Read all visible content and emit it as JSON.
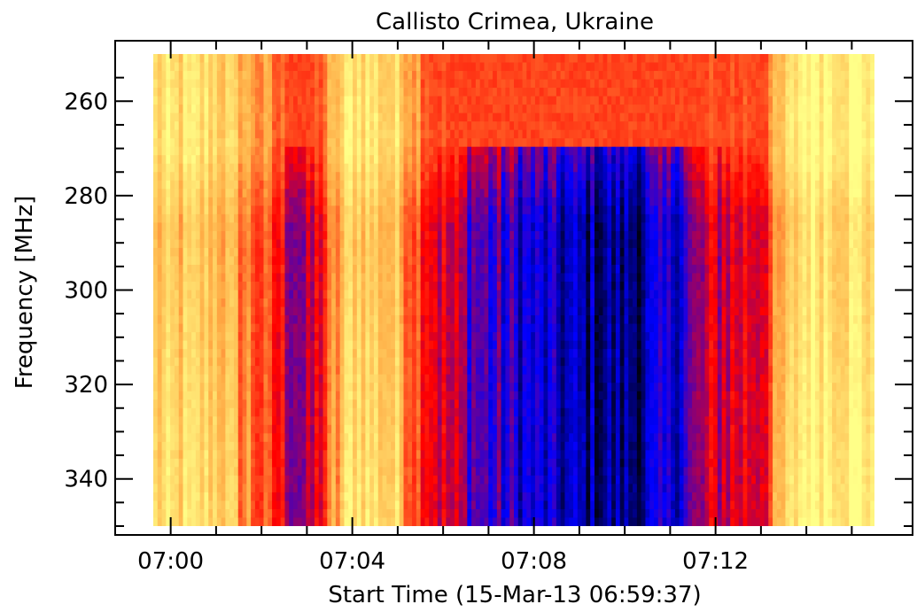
{
  "chart_data": {
    "type": "heatmap",
    "title": "Callisto Crimea, Ukraine",
    "xlabel": "Start Time (15-Mar-13 06:59:37)",
    "ylabel": "Frequency [MHz]",
    "x_unit": "time (HH:MM)",
    "x_range": [
      "06:59:37",
      "07:15:30"
    ],
    "x_ticks": [
      "07:00",
      "07:04",
      "07:08",
      "07:12"
    ],
    "x_tick_values": [
      "07:00",
      "07:04",
      "07:08",
      "07:12"
    ],
    "y_range": [
      250,
      350
    ],
    "y_reversed": true,
    "y_ticks": [
      "260",
      "280",
      "300",
      "320",
      "340"
    ],
    "y_tick_values": [
      260,
      280,
      300,
      320,
      340
    ],
    "colormap": [
      "#000000",
      "#0000ff",
      "#ff0000",
      "#ffaa44",
      "#ffff88"
    ],
    "intensity_profile": [
      {
        "t": "07:00:00",
        "level": 0.8
      },
      {
        "t": "07:01:00",
        "level": 0.82
      },
      {
        "t": "07:02:00",
        "level": 0.6
      },
      {
        "t": "07:03:00",
        "level": 0.35
      },
      {
        "t": "07:04:00",
        "level": 0.88
      },
      {
        "t": "07:05:00",
        "level": 0.78
      },
      {
        "t": "07:06:00",
        "level": 0.45
      },
      {
        "t": "07:07:00",
        "level": 0.3
      },
      {
        "t": "07:08:00",
        "level": 0.22
      },
      {
        "t": "07:09:00",
        "level": 0.15
      },
      {
        "t": "07:10:00",
        "level": 0.12
      },
      {
        "t": "07:11:00",
        "level": 0.22
      },
      {
        "t": "07:12:00",
        "level": 0.45
      },
      {
        "t": "07:13:00",
        "level": 0.5
      },
      {
        "t": "07:14:00",
        "level": 0.95
      },
      {
        "t": "07:15:00",
        "level": 0.9
      }
    ]
  },
  "colors": {
    "background": "#ffffff",
    "axis": "#000000",
    "black": "#000000",
    "blue": "#0000ff",
    "red": "#ff0000",
    "orange": "#ffaa44",
    "yellow": "#ffff88"
  }
}
